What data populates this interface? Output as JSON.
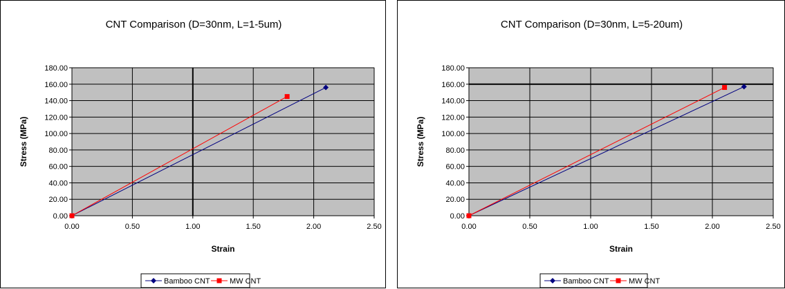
{
  "chart_data": [
    {
      "type": "line",
      "title": "CNT Comparison (D=30nm, L=1-5um)",
      "xlabel": "Strain",
      "ylabel": "Stress (MPa)",
      "xlim": [
        0,
        2.5
      ],
      "ylim": [
        0,
        180
      ],
      "xticks": [
        0,
        0.5,
        1.0,
        1.5,
        2.0,
        2.5
      ],
      "xtick_labels": [
        "0.00",
        "0.50",
        "1.00",
        "1.50",
        "2.00",
        "2.50"
      ],
      "yticks": [
        0,
        20,
        40,
        60,
        80,
        100,
        120,
        140,
        160,
        180
      ],
      "ytick_labels": [
        "0.00",
        "20.00",
        "40.00",
        "60.00",
        "80.00",
        "100.00",
        "120.00",
        "140.00",
        "160.00",
        "180.00"
      ],
      "grid": true,
      "plot_background": "#c0c0c0",
      "legend_position": "bottom",
      "series": [
        {
          "name": "Bamboo CNT",
          "color": "#000080",
          "marker": "diamond",
          "points": [
            [
              0,
              0
            ],
            [
              2.1,
              156
            ]
          ]
        },
        {
          "name": "MW CNT",
          "color": "#ff0000",
          "marker": "square",
          "points": [
            [
              0,
              0
            ],
            [
              1.78,
              145
            ]
          ]
        }
      ]
    },
    {
      "type": "line",
      "title": "CNT Comparison (D=30nm, L=5-20um)",
      "xlabel": "Strain",
      "ylabel": "Stress (MPa)",
      "xlim": [
        0,
        2.5
      ],
      "ylim": [
        0,
        180
      ],
      "xticks": [
        0,
        0.5,
        1.0,
        1.5,
        2.0,
        2.5
      ],
      "xtick_labels": [
        "0.00",
        "0.50",
        "1.00",
        "1.50",
        "2.00",
        "2.50"
      ],
      "yticks": [
        0,
        20,
        40,
        60,
        80,
        100,
        120,
        140,
        160,
        180
      ],
      "ytick_labels": [
        "0.00",
        "20.00",
        "40.00",
        "60.00",
        "80.00",
        "100.00",
        "120.00",
        "140.00",
        "160.00",
        "180.00"
      ],
      "grid": true,
      "plot_background": "#c0c0c0",
      "legend_position": "bottom",
      "series": [
        {
          "name": "Bamboo CNT",
          "color": "#000080",
          "marker": "diamond",
          "points": [
            [
              0,
              0
            ],
            [
              2.26,
              157
            ]
          ]
        },
        {
          "name": "MW CNT",
          "color": "#ff0000",
          "marker": "square",
          "points": [
            [
              0,
              0
            ],
            [
              2.1,
              156
            ]
          ]
        }
      ]
    }
  ]
}
